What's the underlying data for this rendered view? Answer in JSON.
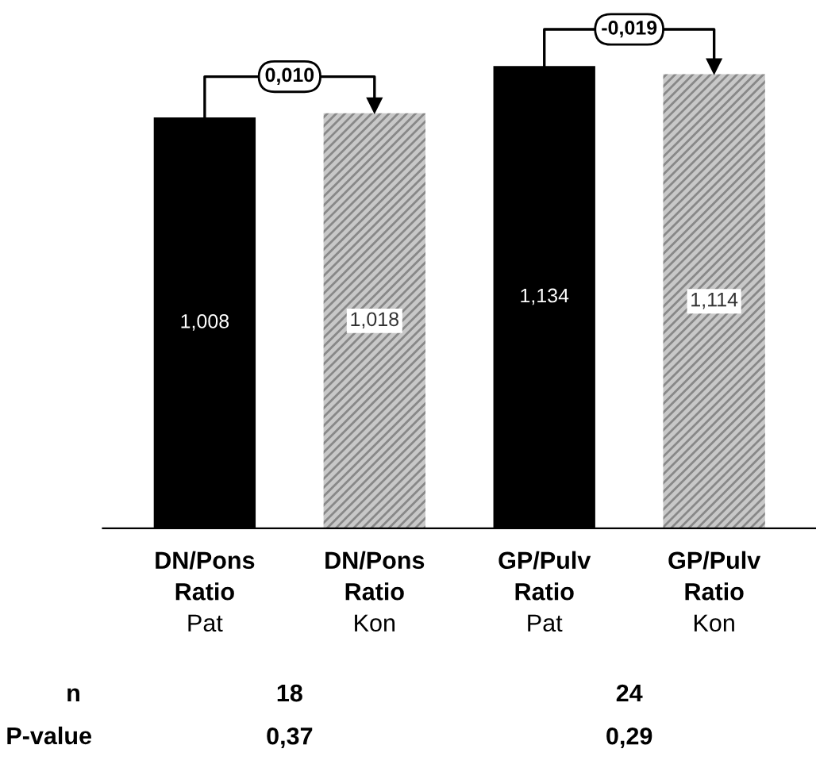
{
  "chart_data": {
    "type": "bar",
    "categories": [
      "DN/Pons\nRatio\nPat",
      "DN/Pons\nRatio\nKon",
      "GP/Pulv\nRatio\nPat",
      "GP/Pulv\nRatio\nKon"
    ],
    "series": [
      {
        "color": "#000000",
        "values": [
          1.008,
          null,
          1.134,
          null
        ],
        "value_labels": [
          "1,008",
          null,
          "1,134",
          null
        ]
      },
      {
        "color": "#c8c8c8",
        "values": [
          null,
          1.018,
          null,
          1.114
        ],
        "value_labels": [
          null,
          "1,018",
          null,
          "1,114"
        ]
      }
    ],
    "tick_labels": "x",
    "annotations": [
      "0,010",
      "-0,019",
      "n",
      "18",
      "24",
      "P-value",
      "0,37",
      "0,29"
    ]
  }
}
